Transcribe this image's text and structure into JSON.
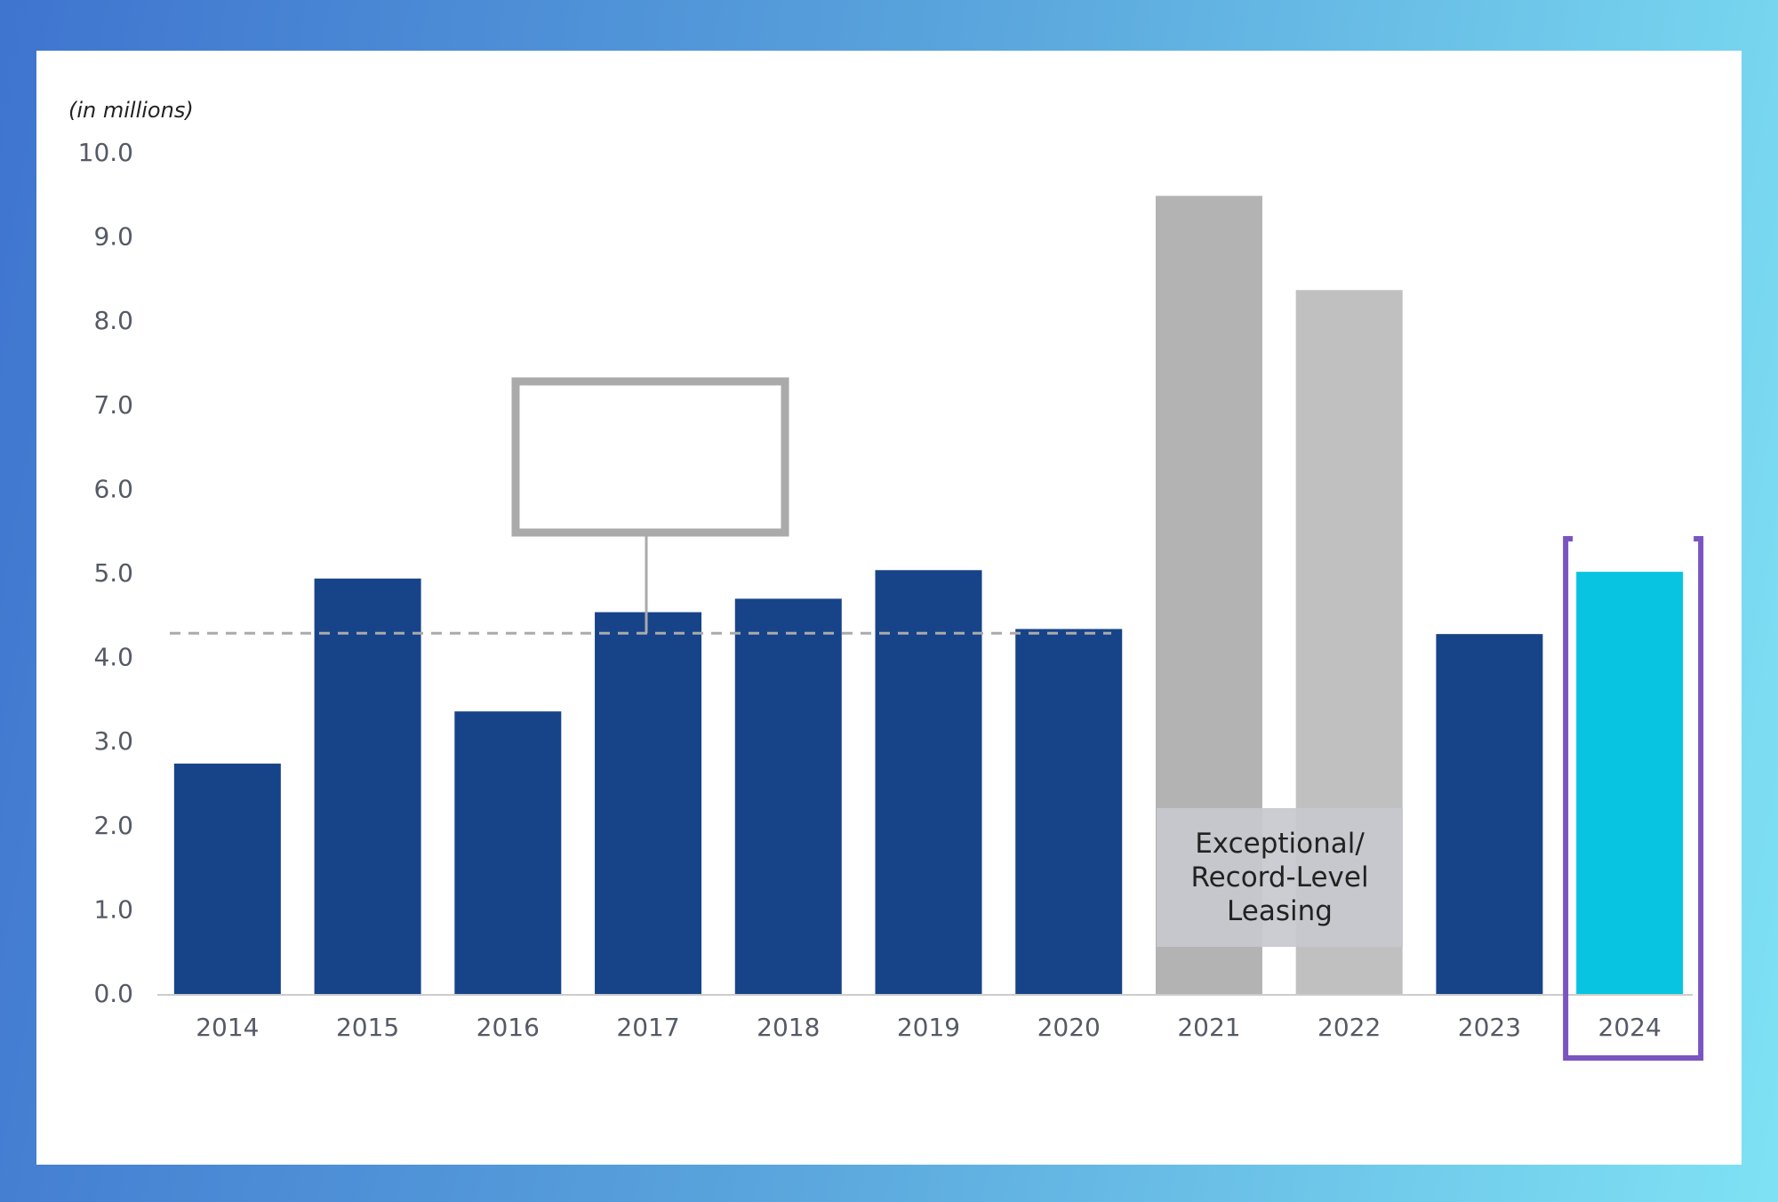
{
  "chart_data": {
    "type": "bar",
    "y_label": "(in millions)",
    "categories": [
      "2014",
      "2015",
      "2016",
      "2017",
      "2018",
      "2019",
      "2020",
      "2021",
      "2022",
      "2023",
      "2024"
    ],
    "values": [
      2.75,
      4.95,
      3.37,
      4.55,
      4.71,
      5.05,
      4.35,
      9.5,
      8.38,
      4.29,
      5.03
    ],
    "colors": [
      "#174489",
      "#174489",
      "#174489",
      "#174489",
      "#174489",
      "#174489",
      "#174489",
      "#b3b3b3",
      "#c0c0c0",
      "#174489",
      "#08c4e0"
    ],
    "ylim": [
      0,
      10
    ],
    "yticks": [
      {
        "value": 0,
        "label": "0.0"
      },
      {
        "value": 1,
        "label": "1.0"
      },
      {
        "value": 2,
        "label": "2.0"
      },
      {
        "value": 3,
        "label": "3.0"
      },
      {
        "value": 4,
        "label": "4.0"
      },
      {
        "value": 5,
        "label": "5.0"
      },
      {
        "value": 6,
        "label": "6.0"
      },
      {
        "value": 7,
        "label": "7.0"
      },
      {
        "value": 8,
        "label": "8.0"
      },
      {
        "value": 9,
        "label": "9.0"
      },
      {
        "value": 10,
        "label": "10.0"
      }
    ],
    "average_line": 4.3,
    "annotation": "Exceptional/ Record-Level Leasing"
  }
}
